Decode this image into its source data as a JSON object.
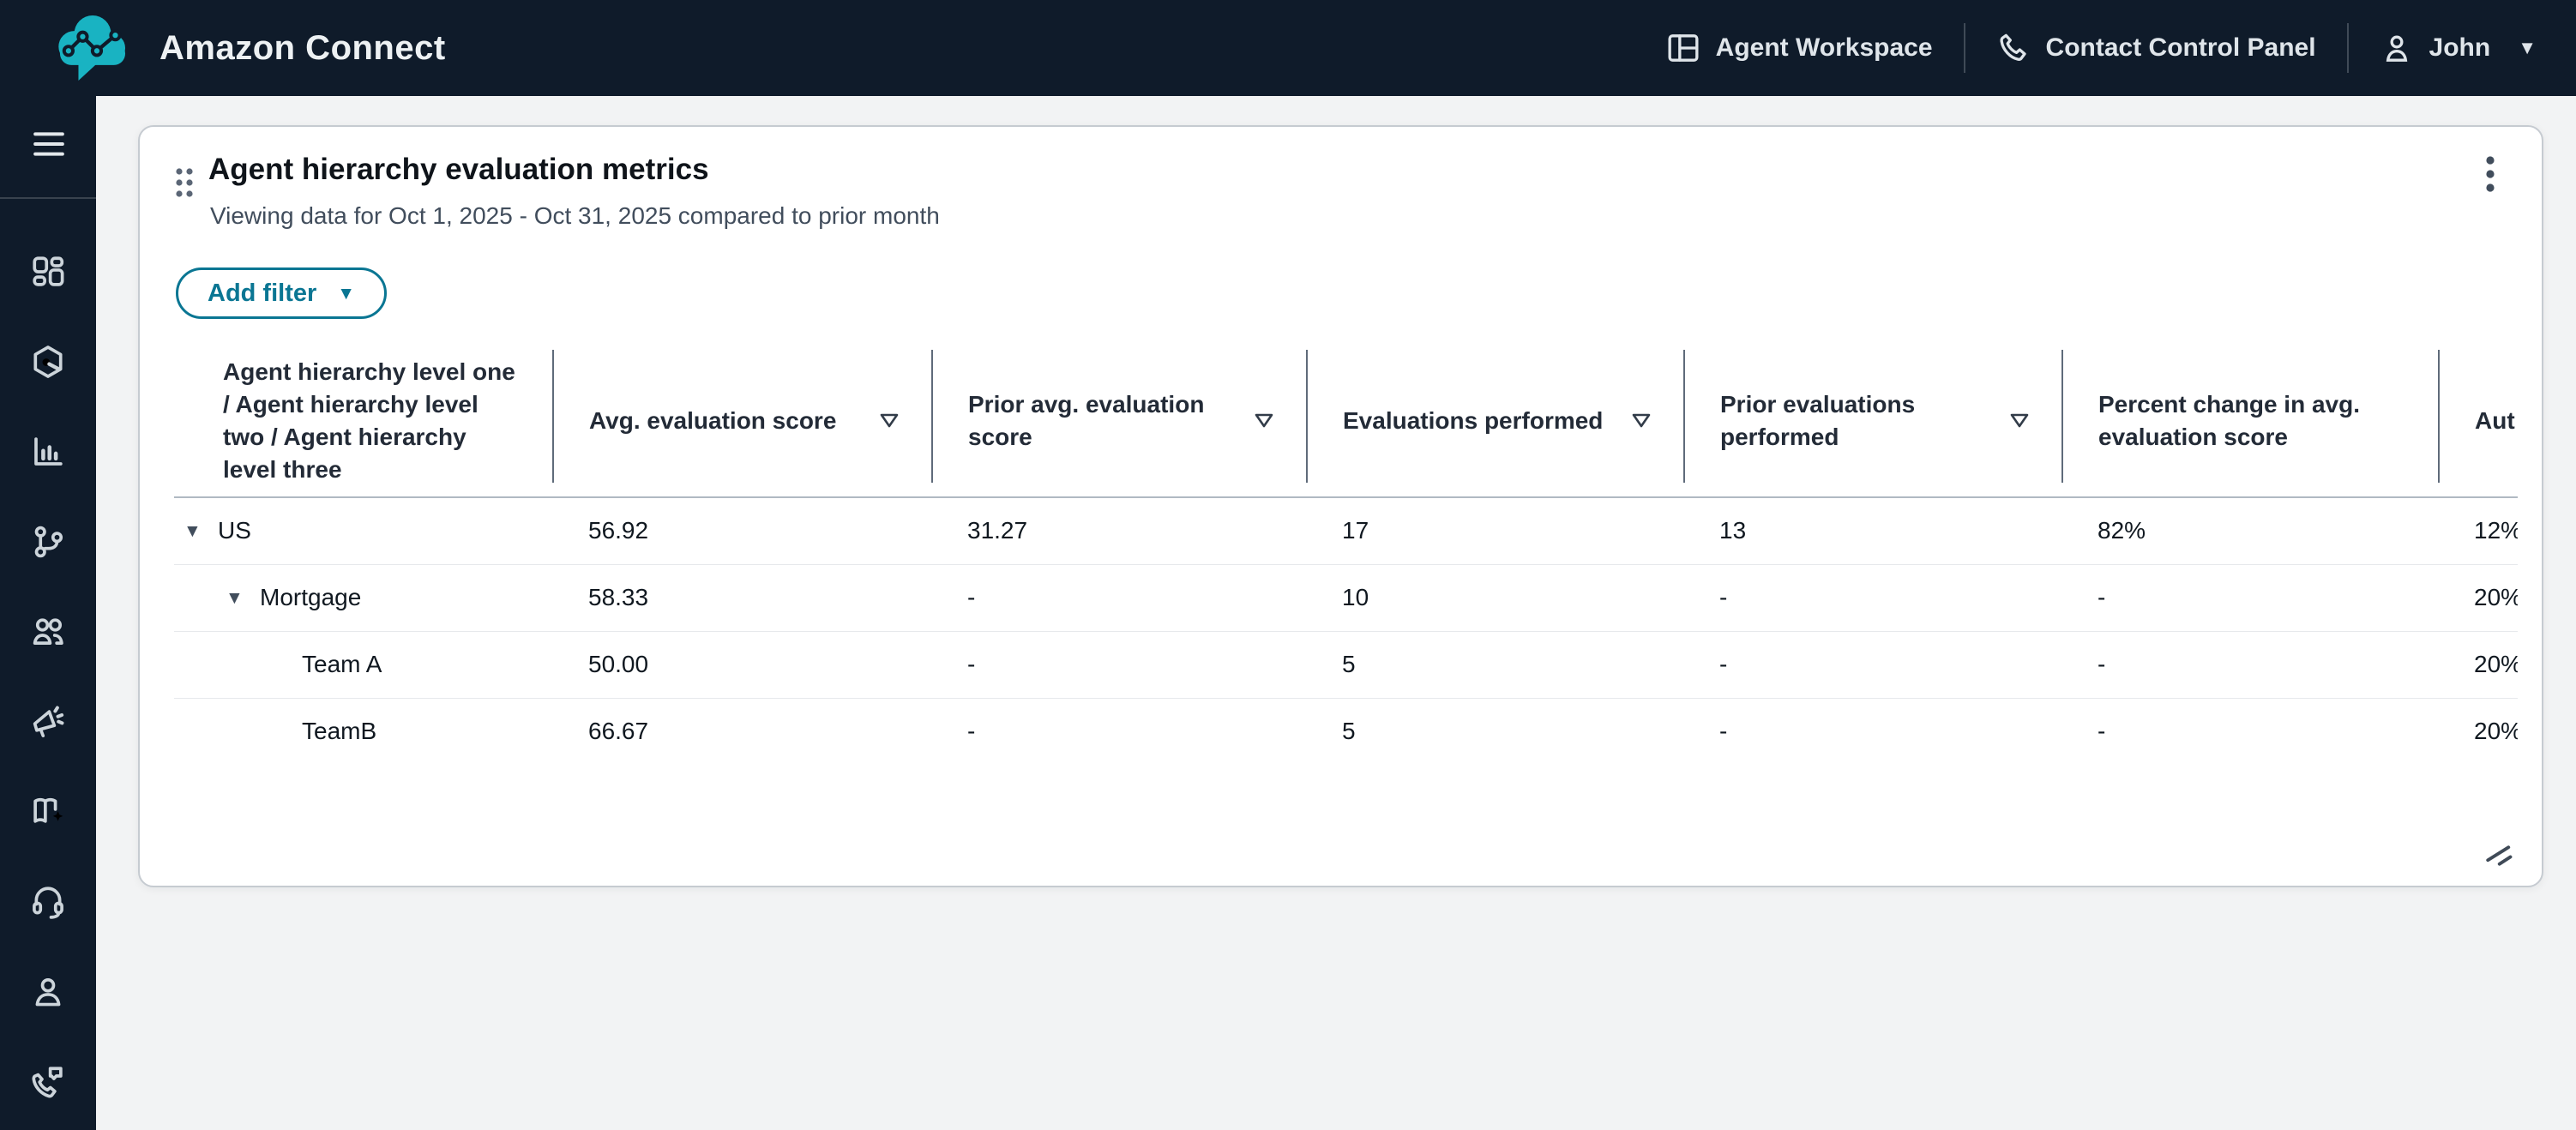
{
  "topbar": {
    "brand": "Amazon Connect",
    "nav": [
      {
        "label": "Agent Workspace",
        "icon": "workspace-panel-icon",
        "caret": false
      },
      {
        "label": "Contact Control Panel",
        "icon": "phone-icon",
        "caret": false
      },
      {
        "label": "John",
        "icon": "user-icon",
        "caret": true
      }
    ]
  },
  "sidebar": {
    "items": [
      {
        "icon": "dashboard-grid-icon",
        "name": "dashboard"
      },
      {
        "icon": "hexagon-node-icon",
        "name": "routing"
      },
      {
        "icon": "bar-chart-icon",
        "name": "analytics"
      },
      {
        "icon": "branch-icon",
        "name": "flows"
      },
      {
        "icon": "users-icon",
        "name": "users"
      },
      {
        "icon": "megaphone-sparkle-icon",
        "name": "campaigns"
      },
      {
        "icon": "book-sparkle-icon",
        "name": "knowledge"
      },
      {
        "icon": "headset-icon",
        "name": "agent-workspace"
      },
      {
        "icon": "person-icon",
        "name": "profile"
      },
      {
        "icon": "phone-message-icon",
        "name": "contacts"
      }
    ]
  },
  "card": {
    "title": "Agent hierarchy evaluation metrics",
    "subtitle": "Viewing data for Oct 1, 2025 - Oct 31, 2025 compared to prior month",
    "add_filter_label": "Add filter",
    "table": {
      "columns": [
        {
          "label": "Agent hierarchy level one / Agent hierarchy level two / Agent hierarchy level three",
          "filter": false
        },
        {
          "label": "Avg. evaluation score",
          "filter": true
        },
        {
          "label": "Prior avg. evaluation score",
          "filter": true
        },
        {
          "label": "Evaluations performed",
          "filter": true
        },
        {
          "label": "Prior evaluations performed",
          "filter": true
        },
        {
          "label": "Percent change in avg. evaluation score",
          "filter": false
        },
        {
          "label": "Aut",
          "filter": false
        }
      ],
      "rows": [
        {
          "name": "US",
          "level": 1,
          "expandable": true,
          "values": [
            "56.92",
            "31.27",
            "17",
            "13",
            "82%",
            "12%"
          ]
        },
        {
          "name": "Mortgage",
          "level": 2,
          "expandable": true,
          "values": [
            "58.33",
            "-",
            "10",
            "-",
            "-",
            "20%"
          ]
        },
        {
          "name": "Team A",
          "level": 3,
          "expandable": false,
          "values": [
            "50.00",
            "-",
            "5",
            "-",
            "-",
            "20%"
          ]
        },
        {
          "name": "TeamB",
          "level": 3,
          "expandable": false,
          "values": [
            "66.67",
            "-",
            "5",
            "-",
            "-",
            "20%"
          ]
        }
      ]
    }
  },
  "colors": {
    "topbar_bg": "#0f1b2a",
    "brand_teal": "#19b3c2",
    "button_teal": "#0a7693",
    "page_bg": "#f2f3f4",
    "header_divider": "#5f6b7a",
    "row_separator": "#e7e9ec"
  }
}
